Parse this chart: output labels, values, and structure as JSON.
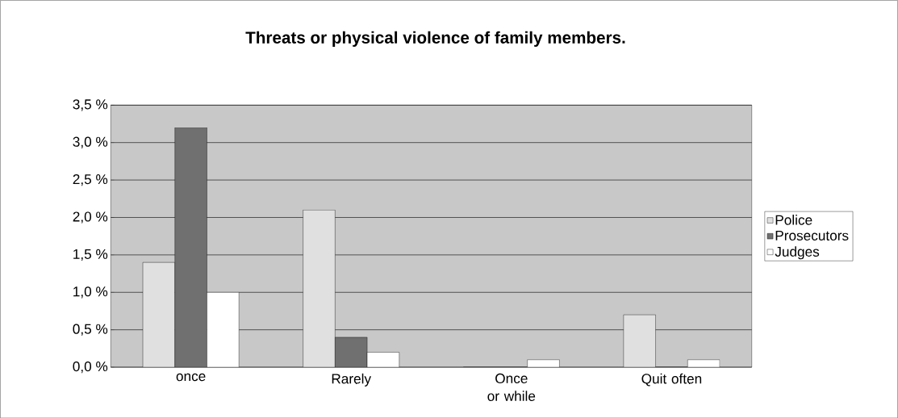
{
  "chart_data": {
    "type": "bar",
    "title": "Threats or physical violence of family members.",
    "categories": [
      "once",
      "Rarely",
      "Once or while",
      "Quit often"
    ],
    "series": [
      {
        "name": "Police",
        "color": "#e0e0e0",
        "values": [
          1.4,
          2.1,
          0,
          0.7
        ]
      },
      {
        "name": "Prosecutors",
        "color": "#707070",
        "values": [
          3.2,
          0.4,
          0,
          0
        ]
      },
      {
        "name": "Judges",
        "color": "#ffffff",
        "values": [
          1.0,
          0.2,
          0.1,
          0.1
        ]
      }
    ],
    "ylim": [
      0,
      3.5
    ],
    "yticks": [
      {
        "value": 0,
        "label": "0,0 %"
      },
      {
        "value": 0.5,
        "label": "0,5 %"
      },
      {
        "value": 1.0,
        "label": "1,0 %"
      },
      {
        "value": 1.5,
        "label": "1,5 %"
      },
      {
        "value": 2.0,
        "label": "2,0 %"
      },
      {
        "value": 2.5,
        "label": "2,5 %"
      },
      {
        "value": 3.0,
        "label": "3,0 %"
      },
      {
        "value": 3.5,
        "label": "3,5 %"
      }
    ],
    "grid": "y",
    "legend": "right"
  }
}
